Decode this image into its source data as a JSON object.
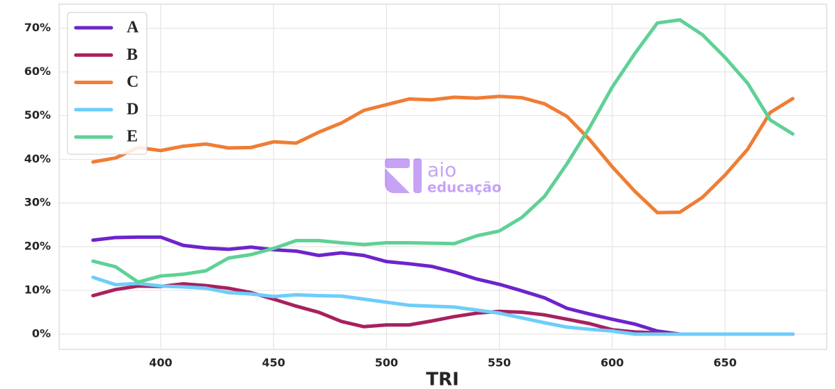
{
  "chart_data": {
    "type": "line",
    "xlabel": "TRI",
    "watermark": [
      "aio",
      "educação"
    ],
    "x": [
      370,
      380,
      390,
      400,
      410,
      420,
      430,
      440,
      450,
      460,
      470,
      480,
      490,
      500,
      510,
      520,
      530,
      540,
      550,
      560,
      570,
      580,
      590,
      600,
      610,
      620,
      630,
      640,
      650,
      660,
      670,
      680
    ],
    "series": [
      {
        "name": "A",
        "color": "#6d24cc",
        "values": [
          21.5,
          22.1,
          22.2,
          22.2,
          20.3,
          19.7,
          19.4,
          19.9,
          19.3,
          19.0,
          18.0,
          18.6,
          18.0,
          16.6,
          16.1,
          15.5,
          14.2,
          12.6,
          11.4,
          9.9,
          8.3,
          5.9,
          4.6,
          3.4,
          2.3,
          0.7,
          0,
          0,
          0,
          0,
          0,
          0
        ]
      },
      {
        "name": "B",
        "color": "#a8215e",
        "values": [
          8.8,
          10.2,
          11.0,
          10.9,
          11.5,
          11.1,
          10.5,
          9.5,
          8.0,
          6.4,
          5.0,
          2.9,
          1.7,
          2.1,
          2.1,
          3.0,
          4.0,
          4.8,
          5.2,
          5.0,
          4.4,
          3.4,
          2.4,
          1.0,
          0.5,
          0.3,
          0,
          0,
          0,
          0,
          0,
          0
        ]
      },
      {
        "name": "C",
        "color": "#f07d35",
        "values": [
          39.4,
          40.3,
          42.7,
          42.0,
          43.0,
          43.5,
          42.6,
          42.7,
          44.0,
          43.7,
          46.2,
          48.3,
          51.2,
          52.5,
          53.8,
          53.6,
          54.2,
          54.0,
          54.4,
          54.1,
          52.7,
          49.8,
          44.5,
          38.3,
          32.7,
          27.8,
          27.9,
          31.3,
          36.4,
          42.3,
          50.7,
          53.9
        ]
      },
      {
        "name": "D",
        "color": "#6dcdfa",
        "values": [
          13.0,
          11.3,
          11.6,
          11.0,
          10.8,
          10.5,
          9.5,
          9.2,
          8.6,
          9.0,
          8.8,
          8.7,
          8.0,
          7.3,
          6.6,
          6.4,
          6.2,
          5.5,
          4.8,
          3.7,
          2.6,
          1.6,
          1.1,
          0.7,
          0,
          0,
          0,
          0,
          0,
          0,
          0,
          0
        ]
      },
      {
        "name": "E",
        "color": "#5fd196",
        "values": [
          16.7,
          15.4,
          11.9,
          13.3,
          13.7,
          14.5,
          17.4,
          18.2,
          19.6,
          21.4,
          21.4,
          20.9,
          20.5,
          20.9,
          20.9,
          20.8,
          20.7,
          22.5,
          23.6,
          26.7,
          31.5,
          39.0,
          47.3,
          56.5,
          64.2,
          71.2,
          71.9,
          68.5,
          63.3,
          57.4,
          49.0,
          45.8
        ]
      }
    ],
    "xlim": [
      355,
      695
    ],
    "xticks": [
      400,
      450,
      500,
      550,
      600,
      650
    ],
    "ylim": [
      -3.5,
      75.5
    ],
    "yticks": [
      {
        "value": 0,
        "label": "0%"
      },
      {
        "value": 10,
        "label": "10%"
      },
      {
        "value": 20,
        "label": "20%"
      },
      {
        "value": 30,
        "label": "30%"
      },
      {
        "value": 40,
        "label": "40%"
      },
      {
        "value": 50,
        "label": "50%"
      },
      {
        "value": 60,
        "label": "60%"
      },
      {
        "value": 70,
        "label": "70%"
      }
    ],
    "grid": true,
    "legend": "upper-left"
  }
}
